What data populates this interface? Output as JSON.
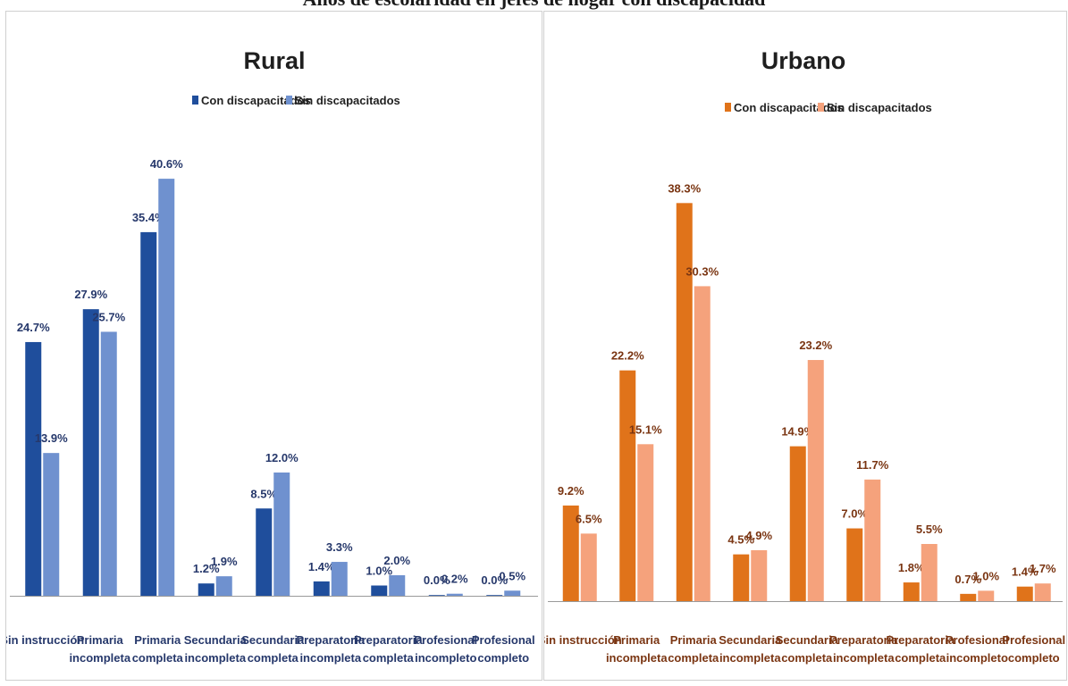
{
  "page_header": "Años de escolaridad en jefes de hogar con discapacidad",
  "chart_data": [
    {
      "type": "bar",
      "title": "Rural",
      "categories": [
        [
          "Sin instrucción"
        ],
        [
          "Primaria",
          "incompleta"
        ],
        [
          "Primaria",
          "completa"
        ],
        [
          "Secundaria",
          "incompleta"
        ],
        [
          "Secundaria",
          "completa"
        ],
        [
          "Preparatoria",
          "incompleta"
        ],
        [
          "Preparatoria",
          "completa"
        ],
        [
          "Profesional",
          "incompleto"
        ],
        [
          "Profesional",
          "completo"
        ]
      ],
      "series": [
        {
          "name": "Con discapacitados",
          "color": "#1f4e9c",
          "values": [
            24.7,
            27.9,
            35.4,
            1.2,
            8.5,
            1.4,
            1.0,
            0.0,
            0.0
          ],
          "labels": [
            "24.7%",
            "27.9%",
            "35.4%",
            "1.2%",
            "8.5%",
            "1.4%",
            "1.0%",
            "0.0%",
            "0.0%"
          ]
        },
        {
          "name": "Sin discapacitados",
          "color": "#6f91cf",
          "values": [
            13.9,
            25.7,
            40.6,
            1.9,
            12.0,
            3.3,
            2.0,
            0.2,
            0.5
          ],
          "labels": [
            "13.9%",
            "25.7%",
            "40.6%",
            "1.9%",
            "12.0%",
            "3.3%",
            "2.0%",
            "0.2%",
            "0.5%"
          ]
        }
      ],
      "ylim": [
        0,
        44
      ],
      "grid": false,
      "legend_position": "top",
      "label_color": "#26386b"
    },
    {
      "type": "bar",
      "title": "Urbano",
      "categories": [
        [
          "Sin instrucción"
        ],
        [
          "Primaria",
          "incompleta"
        ],
        [
          "Primaria",
          "completa"
        ],
        [
          "Secundaria",
          "incompleta"
        ],
        [
          "Secundaria",
          "completa"
        ],
        [
          "Preparatoria",
          "incompleta"
        ],
        [
          "Preparatoria",
          "completa"
        ],
        [
          "Profesional",
          "incompleto"
        ],
        [
          "Profesional",
          "completo"
        ]
      ],
      "series": [
        {
          "name": "Con discapacitados",
          "color": "#e0731a",
          "values": [
            9.2,
            22.2,
            38.3,
            4.5,
            14.9,
            7.0,
            1.8,
            0.7,
            1.4
          ],
          "labels": [
            "9.2%",
            "22.2%",
            "38.3%",
            "4.5%",
            "14.9%",
            "7.0%",
            "1.8%",
            "0.7%",
            "1.4%"
          ]
        },
        {
          "name": "Sin discapacitados",
          "color": "#f5a27c",
          "values": [
            6.5,
            15.1,
            30.3,
            4.9,
            23.2,
            11.7,
            5.5,
            1.0,
            1.7
          ],
          "labels": [
            "6.5%",
            "15.1%",
            "30.3%",
            "4.9%",
            "23.2%",
            "11.7%",
            "5.5%",
            "1.0%",
            "1.7%"
          ]
        }
      ],
      "ylim": [
        0,
        44
      ],
      "grid": false,
      "legend_position": "top",
      "label_color": "#7a3512"
    }
  ]
}
